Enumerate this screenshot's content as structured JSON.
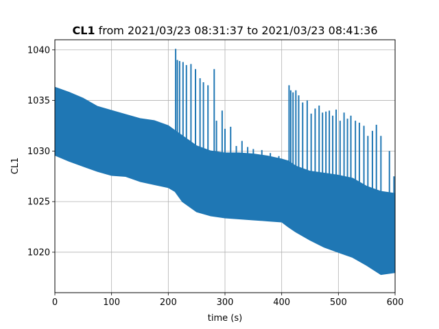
{
  "chart_data": {
    "type": "line",
    "title": {
      "series_name": "CL1",
      "text": " from 2021/03/23 08:31:37 to 2021/03/23 08:41:36"
    },
    "xlabel": "time (s)",
    "ylabel": "CL1",
    "xlim": [
      0,
      600
    ],
    "ylim": [
      1016,
      1041
    ],
    "xticks": [
      0,
      100,
      200,
      300,
      400,
      500,
      600
    ],
    "yticks": [
      1020,
      1025,
      1030,
      1035,
      1040
    ],
    "grid": true,
    "legend": "none",
    "color": "#1f77b4",
    "series": [
      {
        "envelope": {
          "x": [
            0,
            25,
            50,
            75,
            100,
            125,
            150,
            175,
            200,
            212,
            225,
            250,
            275,
            300,
            325,
            350,
            375,
            400,
            412,
            425,
            450,
            475,
            500,
            525,
            550,
            575,
            600
          ],
          "upper": [
            1036.3,
            1035.8,
            1035.2,
            1034.4,
            1034.0,
            1033.6,
            1033.2,
            1033.0,
            1032.5,
            1032.0,
            1031.5,
            1030.5,
            1030.0,
            1029.8,
            1029.8,
            1029.7,
            1029.5,
            1029.2,
            1029.0,
            1028.5,
            1028.0,
            1027.8,
            1027.6,
            1027.3,
            1026.5,
            1026.0,
            1025.8
          ],
          "lower": [
            1029.6,
            1029.0,
            1028.5,
            1028.0,
            1027.6,
            1027.5,
            1027.0,
            1026.7,
            1026.4,
            1026.0,
            1025.0,
            1024.0,
            1023.6,
            1023.4,
            1023.3,
            1023.2,
            1023.1,
            1023.0,
            1022.5,
            1022.0,
            1021.2,
            1020.5,
            1020.0,
            1019.5,
            1018.7,
            1017.8,
            1018.0
          ]
        },
        "spikes": [
          [
            213,
            1040.1
          ],
          [
            216,
            1039.0
          ],
          [
            220,
            1038.9
          ],
          [
            226,
            1038.8
          ],
          [
            232,
            1038.5
          ],
          [
            240,
            1038.6
          ],
          [
            248,
            1038.1
          ],
          [
            256,
            1037.2
          ],
          [
            262,
            1036.8
          ],
          [
            270,
            1036.5
          ],
          [
            281,
            1038.1
          ],
          [
            285,
            1033.0
          ],
          [
            295,
            1034.0
          ],
          [
            300,
            1032.2
          ],
          [
            310,
            1032.4
          ],
          [
            320,
            1030.5
          ],
          [
            330,
            1031.0
          ],
          [
            340,
            1030.4
          ],
          [
            350,
            1030.2
          ],
          [
            365,
            1030.1
          ],
          [
            380,
            1029.8
          ],
          [
            395,
            1029.5
          ],
          [
            413,
            1036.5
          ],
          [
            416,
            1036.0
          ],
          [
            420,
            1035.8
          ],
          [
            425,
            1036.0
          ],
          [
            430,
            1035.5
          ],
          [
            437,
            1034.8
          ],
          [
            445,
            1035.0
          ],
          [
            452,
            1033.7
          ],
          [
            459,
            1034.2
          ],
          [
            466,
            1034.5
          ],
          [
            472,
            1033.8
          ],
          [
            478,
            1033.9
          ],
          [
            484,
            1034.0
          ],
          [
            490,
            1033.5
          ],
          [
            496,
            1034.1
          ],
          [
            503,
            1033.0
          ],
          [
            510,
            1033.8
          ],
          [
            516,
            1033.2
          ],
          [
            522,
            1033.5
          ],
          [
            530,
            1033.0
          ],
          [
            537,
            1032.8
          ],
          [
            545,
            1032.5
          ],
          [
            552,
            1031.5
          ],
          [
            560,
            1032.0
          ],
          [
            567,
            1032.6
          ],
          [
            575,
            1031.5
          ],
          [
            590,
            1030.0
          ],
          [
            598,
            1027.5
          ]
        ]
      }
    ]
  }
}
